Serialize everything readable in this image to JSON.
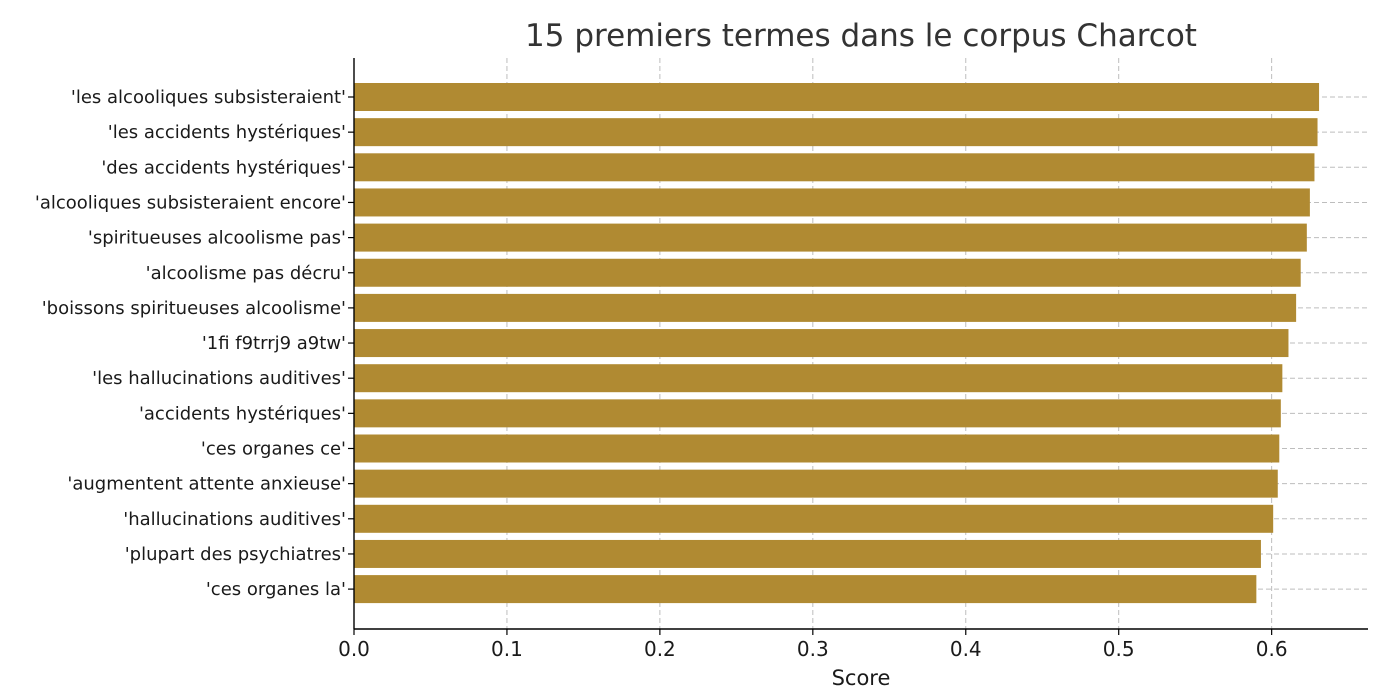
{
  "chart_data": {
    "type": "bar",
    "orientation": "horizontal",
    "title": "15 premiers termes dans le corpus Charcot",
    "xlabel": "Score",
    "ylabel": "",
    "xlim": [
      0,
      0.663
    ],
    "xticks": [
      "0.0",
      "0.1",
      "0.2",
      "0.3",
      "0.4",
      "0.5",
      "0.6"
    ],
    "xtick_values": [
      0.0,
      0.1,
      0.2,
      0.3,
      0.4,
      0.5,
      0.6
    ],
    "grid": true,
    "bar_color": "#b08a32",
    "categories": [
      "'les alcooliques subsisteraient'",
      "'les accidents hystériques'",
      "'des accidents hystériques'",
      "'alcooliques subsisteraient encore'",
      "'spiritueuses alcoolisme pas'",
      "'alcoolisme pas décru'",
      "'boissons spiritueuses alcoolisme'",
      "'1fi f9trrj9 a9tw'",
      "'les hallucinations auditives'",
      "'accidents hystériques'",
      "'ces organes ce'",
      "'augmentent attente anxieuse'",
      "'hallucinations auditives'",
      "'plupart des psychiatres'",
      "'ces organes la'"
    ],
    "values": [
      0.631,
      0.63,
      0.628,
      0.625,
      0.623,
      0.619,
      0.616,
      0.611,
      0.607,
      0.606,
      0.605,
      0.604,
      0.601,
      0.593,
      0.59
    ]
  }
}
